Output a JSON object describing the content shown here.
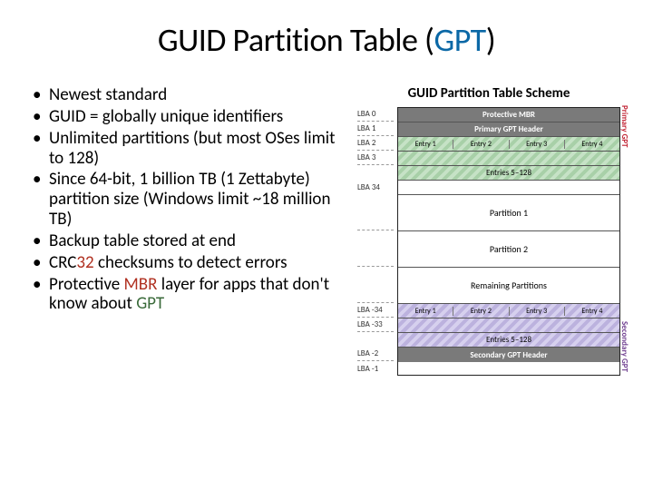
{
  "title": {
    "pre": "GUID Partition Table (",
    "accent": "GPT",
    "post": ")"
  },
  "bullets": [
    "Newest standard",
    "GUID = globally unique identifiers",
    "Unlimited partitions (but most OSes limit to 128)",
    "Since 64-bit, 1 billion TB (1 Zettabyte) partition size (Windows limit ~18 million TB)",
    "Backup table stored at end"
  ],
  "bullet6": {
    "pre": "CRC",
    "acc": "32",
    "post": " checksums to detect errors"
  },
  "bullet7": {
    "pre": "Protective ",
    "mbr": "MBR",
    "mid": " layer for apps that don't know about ",
    "gpt": "GPT"
  },
  "diagram": {
    "title": "GUID Partition Table Scheme",
    "lba_top": [
      "LBA 0",
      "LBA 1",
      "LBA 2",
      "LBA 3",
      "",
      "LBA 34"
    ],
    "lba_bot": [
      "LBA -34",
      "LBA -33",
      "",
      "LBA -2",
      "LBA -1"
    ],
    "protective_mbr": "Protective MBR",
    "primary_header": "Primary GPT Header",
    "entries_1_4": [
      "Entry 1",
      "Entry 2",
      "Entry 3",
      "Entry 4"
    ],
    "entries_5_128": "Entries 5–128",
    "partition1": "Partition 1",
    "partition2": "Partition 2",
    "remaining": "Remaining Partitions",
    "secondary_header": "Secondary GPT Header",
    "side_primary": "Primary GPT",
    "side_secondary": "Secondary GPT",
    "colors": {
      "header_bg": "#7a7a7a",
      "header_fg": "#ffffff",
      "primary_stripe1": "#c6e2c6",
      "primary_stripe2": "#a8d0a8",
      "secondary_stripe1": "#d6d0ee",
      "secondary_stripe2": "#bcb2de",
      "side_primary": "#c02030",
      "side_secondary": "#704090"
    }
  }
}
